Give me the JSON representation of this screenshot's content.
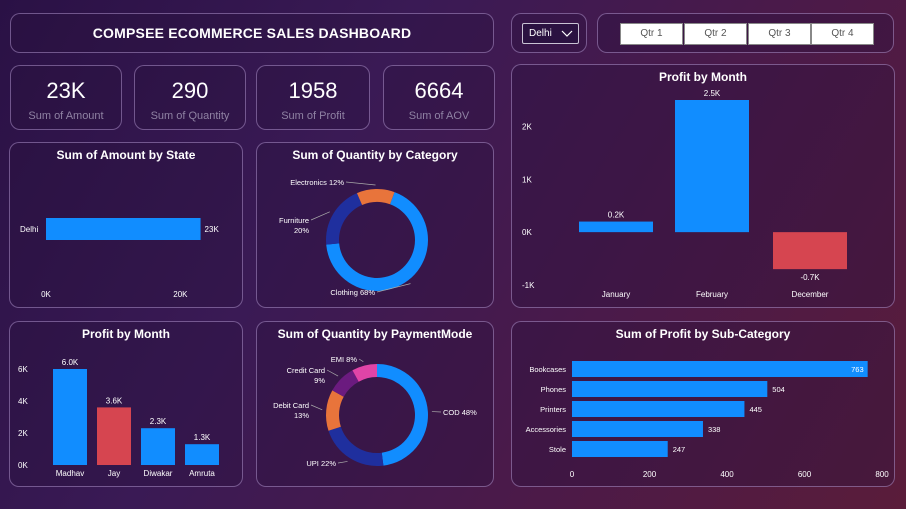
{
  "header": {
    "title": "COMPSEE ECOMMERCE SALES DASHBOARD"
  },
  "slicer": {
    "state": "Delhi",
    "quarters": [
      "Qtr 1",
      "Qtr 2",
      "Qtr 3",
      "Qtr 4"
    ]
  },
  "kpis": [
    {
      "value": "23K",
      "label": "Sum of Amount"
    },
    {
      "value": "290",
      "label": "Sum of Quantity"
    },
    {
      "value": "1958",
      "label": "Sum of Profit"
    },
    {
      "value": "6664",
      "label": "Sum of AOV"
    }
  ],
  "colors": {
    "blue": "#118dff",
    "red": "#d64550",
    "navy": "#1f2f9e",
    "orange": "#e8743b",
    "purple": "#6b1b7f",
    "pink": "#e044a7"
  },
  "chart_data": [
    {
      "id": "amount_by_state",
      "type": "bar",
      "orientation": "horizontal",
      "title": "Sum of Amount by State",
      "categories": [
        "Delhi"
      ],
      "values": [
        23000
      ],
      "value_labels": [
        "23K"
      ],
      "ticks": [
        "0K",
        "20K"
      ],
      "xlim": [
        0,
        25000
      ]
    },
    {
      "id": "qty_by_category",
      "type": "pie",
      "donut": true,
      "title": "Sum of Quantity by Category",
      "labels": [
        "Clothing",
        "Furniture",
        "Electronics"
      ],
      "values": [
        68,
        20,
        12
      ]
    },
    {
      "id": "profit_by_month_top",
      "type": "bar",
      "title": "Profit by Month",
      "categories": [
        "January",
        "February",
        "December"
      ],
      "values": [
        200,
        2500,
        -700
      ],
      "value_labels": [
        "0.2K",
        "2.5K",
        "-0.7K"
      ],
      "ticks": [
        "2K",
        "1K",
        "0K",
        "-1K"
      ],
      "ylim": [
        -1000,
        2500
      ]
    },
    {
      "id": "profit_by_name",
      "type": "bar",
      "title": "Profit by Month",
      "categories": [
        "Madhav",
        "Jay",
        "Diwakar",
        "Amruta"
      ],
      "values": [
        6000,
        3600,
        2300,
        1300
      ],
      "value_labels": [
        "6.0K",
        "3.6K",
        "2.3K",
        "1.3K"
      ],
      "ticks": [
        "6K",
        "4K",
        "2K",
        "0K"
      ],
      "ylim": [
        0,
        6000
      ]
    },
    {
      "id": "qty_by_payment",
      "type": "pie",
      "donut": true,
      "title": "Sum of Quantity by PaymentMode",
      "labels": [
        "COD",
        "UPI",
        "Debit Card",
        "Credit Card",
        "EMI"
      ],
      "values": [
        48,
        22,
        13,
        9,
        8
      ]
    },
    {
      "id": "profit_by_subcategory",
      "type": "bar",
      "orientation": "horizontal",
      "title": "Sum of Profit by Sub-Category",
      "categories": [
        "Bookcases",
        "Phones",
        "Printers",
        "Accessories",
        "Stole"
      ],
      "values": [
        763,
        504,
        445,
        338,
        247
      ],
      "ticks": [
        "0",
        "200",
        "400",
        "600",
        "800"
      ],
      "xlim": [
        0,
        800
      ]
    }
  ]
}
